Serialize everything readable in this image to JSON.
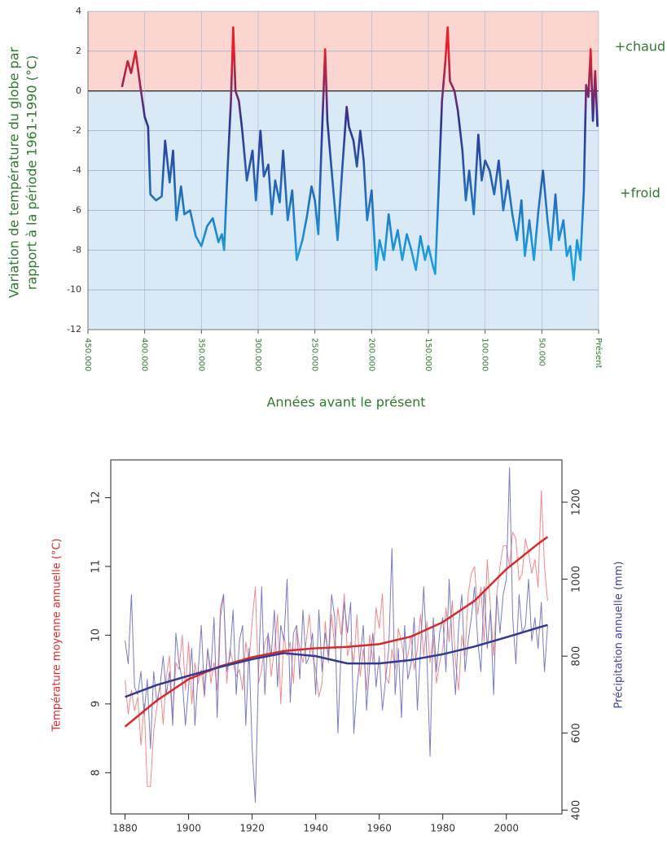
{
  "chart_data": [
    {
      "type": "line",
      "ylabel": [
        "Variation de température du globe par",
        "rapport à la période 1961-1990 (°C)"
      ],
      "xlabel": "Années avant le présent",
      "annotations": [
        "+chaud",
        "+froid"
      ],
      "text_color": "#2e7a2e",
      "xlim": [
        450000,
        0
      ],
      "xticks": [
        {
          "value": 450000,
          "label": "450.000"
        },
        {
          "value": 400000,
          "label": "400.000"
        },
        {
          "value": 350000,
          "label": "350.000"
        },
        {
          "value": 300000,
          "label": "300.000"
        },
        {
          "value": 250000,
          "label": "250.000"
        },
        {
          "value": 200000,
          "label": "200.000"
        },
        {
          "value": 150000,
          "label": "150.000"
        },
        {
          "value": 100000,
          "label": "100.000"
        },
        {
          "value": 50000,
          "label": "50.000"
        },
        {
          "value": 0,
          "label": "Présent"
        }
      ],
      "ylim": [
        -12,
        4
      ],
      "yticks": [
        -12,
        -10,
        -8,
        -6,
        -4,
        -2,
        0,
        2,
        4
      ],
      "grid": true,
      "background": {
        "above_zero": "#fbd6d0",
        "below_zero": "#d9e9f6"
      },
      "color_stops": [
        {
          "value": 2,
          "color": "#e8202a"
        },
        {
          "value": -1.5,
          "color": "#2e3190"
        },
        {
          "value": -8.5,
          "color": "#1aa0e0"
        }
      ],
      "x": [
        420000,
        415000,
        412000,
        408000,
        404000,
        400000,
        397000,
        395000,
        390000,
        385000,
        382000,
        378000,
        375000,
        372000,
        368000,
        365000,
        360000,
        355000,
        350000,
        345000,
        340000,
        335000,
        332000,
        330000,
        327000,
        324000,
        322000,
        320000,
        317000,
        314000,
        310000,
        305000,
        302000,
        298000,
        295000,
        291000,
        288000,
        285000,
        281000,
        278000,
        274000,
        270000,
        266000,
        261000,
        257000,
        253000,
        250000,
        247000,
        244000,
        241000,
        239000,
        236000,
        233000,
        230000,
        226000,
        222000,
        220000,
        216000,
        213000,
        210000,
        207000,
        204000,
        200000,
        196000,
        193000,
        189000,
        185000,
        181000,
        177000,
        173000,
        169000,
        165000,
        161000,
        157000,
        153000,
        150000,
        146000,
        144000,
        141000,
        138000,
        135000,
        133000,
        131000,
        127000,
        124000,
        120000,
        117000,
        114000,
        110000,
        106000,
        103000,
        100000,
        96000,
        92000,
        88000,
        84000,
        80000,
        76000,
        72000,
        68000,
        65000,
        61000,
        57000,
        53000,
        49000,
        45000,
        42000,
        38000,
        35000,
        31000,
        28000,
        25000,
        22000,
        19000,
        16000,
        13000,
        11000,
        9000,
        7000,
        5000,
        3000,
        1000
      ],
      "values": [
        0.2,
        1.5,
        0.9,
        2.0,
        0.3,
        -1.3,
        -1.8,
        -5.2,
        -5.5,
        -5.3,
        -2.5,
        -4.6,
        -3.0,
        -6.5,
        -4.8,
        -6.2,
        -6.0,
        -7.3,
        -7.8,
        -6.8,
        -6.4,
        -7.6,
        -7.2,
        -8.0,
        -4.0,
        -0.5,
        3.2,
        0.0,
        -0.5,
        -2.0,
        -4.5,
        -3.0,
        -5.5,
        -2.0,
        -4.3,
        -3.7,
        -6.2,
        -4.5,
        -5.6,
        -3.0,
        -6.5,
        -5.0,
        -8.5,
        -7.5,
        -6.3,
        -4.8,
        -5.5,
        -7.2,
        -2.5,
        2.1,
        -1.5,
        -3.5,
        -5.5,
        -7.5,
        -4.0,
        -0.8,
        -1.8,
        -2.5,
        -3.8,
        -2.0,
        -3.5,
        -6.5,
        -5.0,
        -9.0,
        -7.5,
        -8.5,
        -6.2,
        -8.0,
        -7.0,
        -8.5,
        -7.2,
        -8.0,
        -9.0,
        -7.3,
        -8.5,
        -7.8,
        -8.8,
        -9.2,
        -5.0,
        -0.5,
        1.5,
        3.2,
        0.5,
        0.0,
        -1.0,
        -3.0,
        -5.5,
        -4.0,
        -6.2,
        -2.2,
        -4.5,
        -3.5,
        -4.0,
        -5.2,
        -3.5,
        -6.0,
        -4.5,
        -6.2,
        -7.5,
        -5.5,
        -8.3,
        -6.5,
        -8.5,
        -6.0,
        -4.0,
        -6.5,
        -8.0,
        -5.2,
        -7.5,
        -6.5,
        -8.3,
        -7.8,
        -9.5,
        -7.5,
        -8.5,
        -5.0,
        0.3,
        -0.3,
        2.1,
        -1.5,
        1.0,
        -1.8
      ]
    },
    {
      "type": "line",
      "ylabel": "Température moyenne annuelle (°C)",
      "ylabel_color": "#e02828",
      "y2label": "Précipitation annuelle (mm)",
      "y2label_color": "#4040a0",
      "xlim": [
        1875.5,
        2017.5
      ],
      "xticks": [
        1880,
        1900,
        1920,
        1940,
        1960,
        1980,
        2000
      ],
      "ylim": [
        7.4,
        12.55
      ],
      "yticks": [
        8,
        9,
        10,
        11,
        12
      ],
      "y2lim": [
        390,
        1310
      ],
      "y2ticks": [
        400,
        600,
        800,
        1000,
        1200
      ],
      "x": [
        1880,
        1881,
        1882,
        1883,
        1884,
        1885,
        1886,
        1887,
        1888,
        1889,
        1890,
        1891,
        1892,
        1893,
        1894,
        1895,
        1896,
        1897,
        1898,
        1899,
        1900,
        1901,
        1902,
        1903,
        1904,
        1905,
        1906,
        1907,
        1908,
        1909,
        1910,
        1911,
        1912,
        1913,
        1914,
        1915,
        1916,
        1917,
        1918,
        1919,
        1920,
        1921,
        1922,
        1923,
        1924,
        1925,
        1926,
        1927,
        1928,
        1929,
        1930,
        1931,
        1932,
        1933,
        1934,
        1935,
        1936,
        1937,
        1938,
        1939,
        1940,
        1941,
        1942,
        1943,
        1944,
        1945,
        1946,
        1947,
        1948,
        1949,
        1950,
        1951,
        1952,
        1953,
        1954,
        1955,
        1956,
        1957,
        1958,
        1959,
        1960,
        1961,
        1962,
        1963,
        1964,
        1965,
        1966,
        1967,
        1968,
        1969,
        1970,
        1971,
        1972,
        1973,
        1974,
        1975,
        1976,
        1977,
        1978,
        1979,
        1980,
        1981,
        1982,
        1983,
        1984,
        1985,
        1986,
        1987,
        1988,
        1989,
        1990,
        1991,
        1992,
        1993,
        1994,
        1995,
        1996,
        1997,
        1998,
        1999,
        2000,
        2001,
        2002,
        2003,
        2004,
        2005,
        2006,
        2007,
        2008,
        2009,
        2010,
        2011,
        2012,
        2013
      ],
      "series": [
        {
          "color": "#f08a8a",
          "width": 1,
          "values": [
            9.35,
            8.85,
            9.2,
            8.9,
            9.1,
            8.4,
            9.0,
            7.8,
            7.8,
            8.6,
            8.95,
            9.3,
            8.7,
            9.4,
            9.7,
            8.8,
            9.6,
            9.5,
            10.0,
            9.2,
            9.9,
            9.0,
            9.6,
            9.3,
            9.5,
            9.1,
            9.8,
            9.3,
            9.6,
            9.2,
            10.4,
            10.6,
            9.3,
            9.8,
            9.6,
            9.4,
            9.5,
            9.2,
            9.9,
            9.6,
            10.2,
            10.7,
            9.3,
            9.5,
            9.9,
            10.0,
            9.4,
            9.8,
            10.3,
            9.0,
            10.0,
            9.7,
            9.9,
            9.3,
            10.1,
            9.8,
            9.6,
            9.9,
            10.3,
            9.7,
            9.5,
            9.1,
            9.3,
            10.2,
            9.6,
            10.3,
            9.8,
            10.4,
            10.0,
            10.6,
            9.7,
            9.9,
            9.6,
            10.3,
            9.4,
            9.8,
            9.2,
            10.0,
            9.6,
            10.4,
            10.1,
            10.6,
            9.4,
            9.3,
            9.8,
            9.5,
            10.1,
            9.9,
            9.6,
            9.7,
            10.0,
            9.5,
            9.8,
            10.3,
            9.7,
            10.2,
            9.6,
            10.0,
            9.3,
            9.6,
            9.8,
            10.4,
            9.9,
            10.5,
            9.6,
            9.2,
            10.0,
            9.7,
            10.6,
            10.9,
            11.0,
            10.3,
            10.7,
            9.9,
            11.1,
            10.4,
            9.7,
            10.6,
            11.0,
            11.3,
            11.3,
            11.0,
            11.5,
            11.4,
            10.8,
            10.9,
            11.4,
            11.2,
            10.9,
            11.1,
            10.7,
            12.1,
            11.0,
            10.5
          ]
        },
        {
          "color": "#7a7ac6",
          "width": 1,
          "axis": "y2",
          "values": [
            840,
            780,
            960,
            720,
            700,
            760,
            650,
            740,
            560,
            760,
            680,
            720,
            800,
            700,
            760,
            620,
            860,
            780,
            740,
            620,
            720,
            820,
            620,
            760,
            880,
            700,
            820,
            760,
            900,
            640,
            900,
            960,
            760,
            800,
            920,
            700,
            840,
            880,
            620,
            820,
            560,
            420,
            760,
            980,
            700,
            860,
            800,
            920,
            720,
            880,
            840,
            1000,
            680,
            860,
            880,
            740,
            920,
            780,
            800,
            860,
            700,
            920,
            760,
            860,
            800,
            960,
            900,
            600,
            820,
            940,
            860,
            940,
            600,
            720,
            800,
            880,
            660,
            780,
            860,
            720,
            800,
            660,
            740,
            820,
            1080,
            700,
            820,
            640,
            880,
            740,
            780,
            900,
            660,
            820,
            980,
            800,
            540,
            900,
            760,
            860,
            900,
            760,
            1000,
            820,
            700,
            880,
            960,
            760,
            840,
            900,
            980,
            840,
            760,
            980,
            820,
            920,
            700,
            960,
            860,
            960,
            1000,
            1290,
            900,
            780,
            960,
            860,
            880,
            1000,
            840,
            900,
            820,
            940,
            760,
            880
          ]
        },
        {
          "color": "#d62a2a",
          "width": 2.5,
          "x": [
            1880,
            1890,
            1900,
            1910,
            1920,
            1930,
            1940,
            1950,
            1960,
            1970,
            1980,
            1990,
            2000,
            2010,
            2013
          ],
          "values": [
            8.67,
            9.05,
            9.36,
            9.55,
            9.68,
            9.77,
            9.81,
            9.83,
            9.87,
            9.98,
            10.19,
            10.5,
            10.96,
            11.33,
            11.43
          ]
        },
        {
          "color": "#2f3a91",
          "width": 2.5,
          "axis": "y2",
          "x": [
            1880,
            1890,
            1900,
            1910,
            1920,
            1930,
            1940,
            1950,
            1960,
            1970,
            1980,
            1990,
            2000,
            2010,
            2013
          ],
          "values": [
            694,
            725,
            749,
            772,
            792,
            808,
            800,
            781,
            781,
            790,
            805,
            825,
            849,
            874,
            881
          ]
        }
      ]
    }
  ]
}
